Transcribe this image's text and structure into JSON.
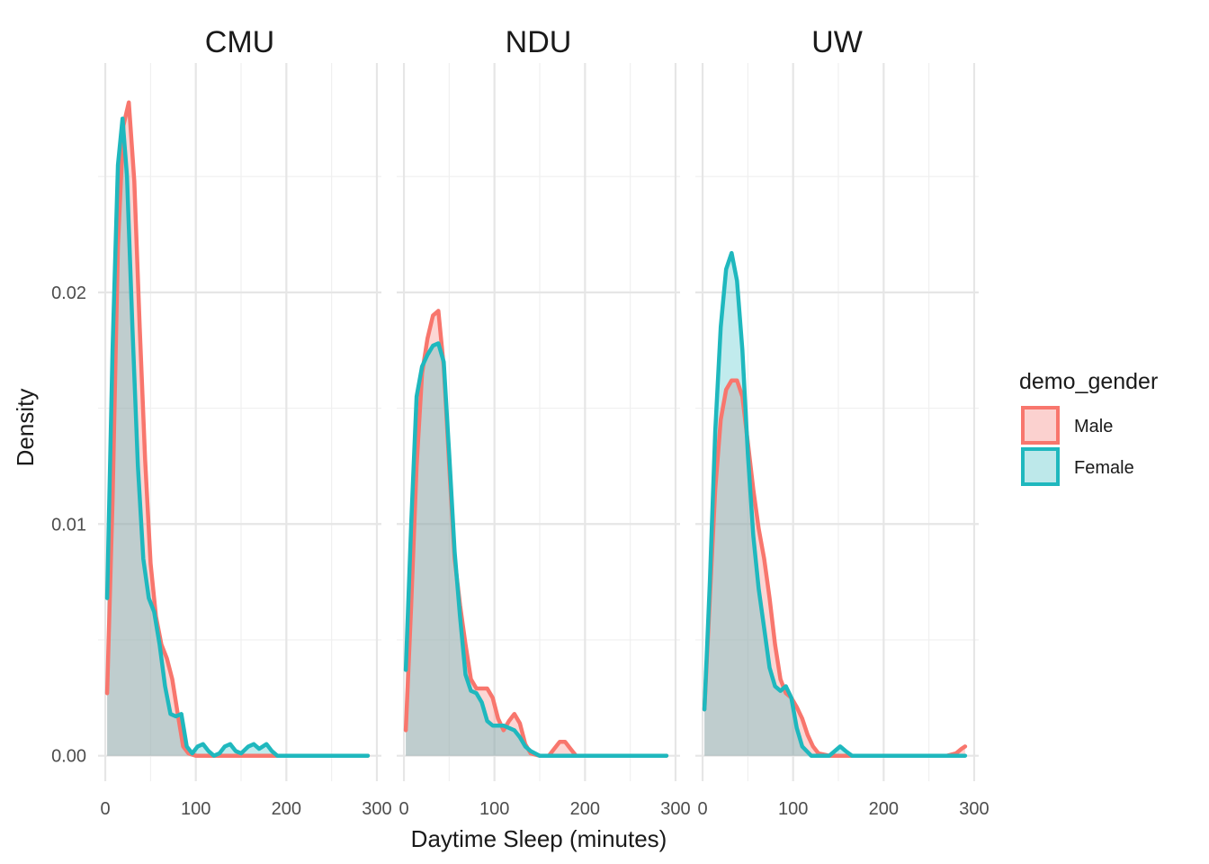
{
  "chart_data": {
    "type": "area",
    "subtype": "density",
    "xlabel": "Daytime Sleep (minutes)",
    "ylabel": "Density",
    "xlim": [
      -8,
      305
    ],
    "ylim": [
      -0.0011,
      0.0299
    ],
    "x_ticks": [
      0,
      100,
      200,
      300
    ],
    "x_minor_ticks": [
      50,
      150,
      250
    ],
    "y_ticks": [
      0.0,
      0.01,
      0.02
    ],
    "y_tick_labels": [
      "0.00",
      "0.01",
      "0.02"
    ],
    "y_minor_ticks": [
      0.005,
      0.015,
      0.025
    ],
    "grid": true,
    "legend": {
      "title": "demo_gender",
      "position": "right",
      "entries": [
        {
          "name": "Male",
          "color": "#F8766D",
          "fill": "#fbd1cf"
        },
        {
          "name": "Female",
          "color": "#1FB8BE",
          "fill": "#bde8ea"
        }
      ]
    },
    "overlap_fill": "#b7c4c5",
    "facets": [
      {
        "name": "CMU",
        "series": [
          {
            "name": "Male",
            "points": [
              [
                2,
                0.0027
              ],
              [
                8,
                0.011
              ],
              [
                14,
                0.022
              ],
              [
                20,
                0.0272
              ],
              [
                26,
                0.0282
              ],
              [
                32,
                0.0248
              ],
              [
                38,
                0.0185
              ],
              [
                44,
                0.0128
              ],
              [
                50,
                0.0083
              ],
              [
                56,
                0.006
              ],
              [
                62,
                0.0048
              ],
              [
                68,
                0.0042
              ],
              [
                74,
                0.0033
              ],
              [
                80,
                0.0018
              ],
              [
                86,
                0.0004
              ],
              [
                92,
                0.0001
              ],
              [
                100,
                0
              ],
              [
                290,
                0
              ]
            ]
          },
          {
            "name": "Female",
            "points": [
              [
                2,
                0.0068
              ],
              [
                8,
                0.0175
              ],
              [
                14,
                0.0255
              ],
              [
                19,
                0.0275
              ],
              [
                24,
                0.025
              ],
              [
                30,
                0.0185
              ],
              [
                36,
                0.0125
              ],
              [
                42,
                0.0085
              ],
              [
                48,
                0.0068
              ],
              [
                54,
                0.0062
              ],
              [
                60,
                0.0048
              ],
              [
                66,
                0.003
              ],
              [
                72,
                0.0018
              ],
              [
                78,
                0.0017
              ],
              [
                84,
                0.0018
              ],
              [
                90,
                0.0004
              ],
              [
                96,
                0.0001
              ],
              [
                102,
                0.0004
              ],
              [
                108,
                0.0005
              ],
              [
                114,
                0.0002
              ],
              [
                120,
                0
              ],
              [
                126,
                0.0001
              ],
              [
                132,
                0.0004
              ],
              [
                138,
                0.0005
              ],
              [
                144,
                0.0002
              ],
              [
                150,
                0.0001
              ],
              [
                158,
                0.0004
              ],
              [
                164,
                0.0005
              ],
              [
                170,
                0.0003
              ],
              [
                178,
                0.0005
              ],
              [
                184,
                0.0002
              ],
              [
                190,
                0
              ],
              [
                290,
                0
              ]
            ]
          }
        ]
      },
      {
        "name": "NDU",
        "series": [
          {
            "name": "Male",
            "points": [
              [
                2,
                0.0011
              ],
              [
                8,
                0.0065
              ],
              [
                14,
                0.0125
              ],
              [
                20,
                0.0165
              ],
              [
                26,
                0.018
              ],
              [
                32,
                0.019
              ],
              [
                38,
                0.0192
              ],
              [
                44,
                0.0168
              ],
              [
                50,
                0.0125
              ],
              [
                56,
                0.0085
              ],
              [
                62,
                0.0065
              ],
              [
                68,
                0.0048
              ],
              [
                74,
                0.0033
              ],
              [
                80,
                0.0029
              ],
              [
                86,
                0.0029
              ],
              [
                92,
                0.0029
              ],
              [
                98,
                0.0025
              ],
              [
                104,
                0.0016
              ],
              [
                110,
                0.0011
              ],
              [
                116,
                0.0015
              ],
              [
                122,
                0.0018
              ],
              [
                128,
                0.0014
              ],
              [
                134,
                0.0005
              ],
              [
                140,
                0.0001
              ],
              [
                150,
                0
              ],
              [
                160,
                0
              ],
              [
                166,
                0.0003
              ],
              [
                172,
                0.0006
              ],
              [
                178,
                0.0006
              ],
              [
                184,
                0.0003
              ],
              [
                190,
                0
              ],
              [
                290,
                0
              ]
            ]
          },
          {
            "name": "Female",
            "points": [
              [
                2,
                0.0037
              ],
              [
                8,
                0.01
              ],
              [
                14,
                0.0155
              ],
              [
                20,
                0.0168
              ],
              [
                26,
                0.0173
              ],
              [
                32,
                0.0177
              ],
              [
                38,
                0.0178
              ],
              [
                44,
                0.017
              ],
              [
                50,
                0.013
              ],
              [
                56,
                0.0088
              ],
              [
                62,
                0.006
              ],
              [
                68,
                0.0035
              ],
              [
                74,
                0.0028
              ],
              [
                80,
                0.0027
              ],
              [
                86,
                0.0023
              ],
              [
                92,
                0.0015
              ],
              [
                98,
                0.0013
              ],
              [
                104,
                0.0013
              ],
              [
                110,
                0.0013
              ],
              [
                116,
                0.0012
              ],
              [
                122,
                0.0011
              ],
              [
                128,
                0.0008
              ],
              [
                134,
                0.0004
              ],
              [
                140,
                0.0002
              ],
              [
                150,
                0
              ],
              [
                290,
                0
              ]
            ]
          }
        ]
      },
      {
        "name": "UW",
        "series": [
          {
            "name": "Male",
            "points": [
              [
                2,
                0.002
              ],
              [
                8,
                0.0068
              ],
              [
                14,
                0.0115
              ],
              [
                20,
                0.0145
              ],
              [
                26,
                0.0158
              ],
              [
                32,
                0.0162
              ],
              [
                38,
                0.0162
              ],
              [
                44,
                0.0155
              ],
              [
                50,
                0.0135
              ],
              [
                56,
                0.0115
              ],
              [
                62,
                0.0098
              ],
              [
                68,
                0.0085
              ],
              [
                74,
                0.0068
              ],
              [
                80,
                0.0048
              ],
              [
                86,
                0.0033
              ],
              [
                92,
                0.0027
              ],
              [
                98,
                0.0025
              ],
              [
                104,
                0.0021
              ],
              [
                110,
                0.0016
              ],
              [
                116,
                0.0009
              ],
              [
                122,
                0.0004
              ],
              [
                128,
                0.0001
              ],
              [
                140,
                0
              ],
              [
                270,
                0
              ],
              [
                280,
                0.0001
              ],
              [
                286,
                0.0003
              ],
              [
                290,
                0.0004
              ]
            ]
          },
          {
            "name": "Female",
            "points": [
              [
                2,
                0.002
              ],
              [
                8,
                0.0075
              ],
              [
                14,
                0.014
              ],
              [
                20,
                0.0185
              ],
              [
                26,
                0.021
              ],
              [
                32,
                0.0217
              ],
              [
                38,
                0.0205
              ],
              [
                44,
                0.0175
              ],
              [
                50,
                0.013
              ],
              [
                56,
                0.0095
              ],
              [
                62,
                0.0072
              ],
              [
                68,
                0.0055
              ],
              [
                74,
                0.0038
              ],
              [
                80,
                0.003
              ],
              [
                86,
                0.0028
              ],
              [
                92,
                0.003
              ],
              [
                98,
                0.0025
              ],
              [
                104,
                0.0012
              ],
              [
                110,
                0.0004
              ],
              [
                120,
                0
              ],
              [
                140,
                0
              ],
              [
                146,
                0.0002
              ],
              [
                152,
                0.0004
              ],
              [
                158,
                0.0002
              ],
              [
                165,
                0
              ],
              [
                290,
                0
              ]
            ]
          }
        ]
      }
    ]
  }
}
